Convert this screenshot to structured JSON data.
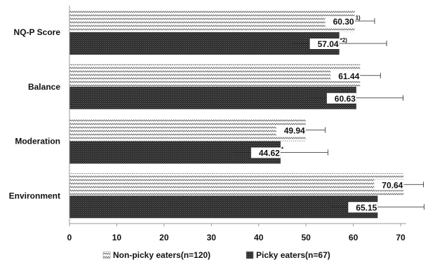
{
  "chart_data": {
    "type": "bar",
    "orientation": "horizontal",
    "categories": [
      "NQ-P Score",
      "Balance",
      "Moderation",
      "Environment"
    ],
    "series": [
      {
        "name": "Non-picky eaters(n=120)",
        "values": [
          60.3,
          61.44,
          49.94,
          70.64
        ],
        "error": [
          4.2,
          4.3,
          4.1,
          4.2
        ],
        "labels": [
          "60.30",
          "61.44",
          "49.94",
          "70.64"
        ],
        "marks": [
          "1)",
          "",
          "",
          ""
        ],
        "pattern": "zigzag",
        "color": "#8c8c8c"
      },
      {
        "name": "Picky eaters(n=67)",
        "values": [
          57.04,
          60.63,
          44.62,
          65.15
        ],
        "error": [
          10.0,
          9.9,
          10.0,
          9.8
        ],
        "labels": [
          "57.04",
          "60.63",
          "44.62",
          "65.15"
        ],
        "marks": [
          "*2)",
          "",
          "*",
          ""
        ],
        "pattern": "dots",
        "color": "#3a3a3a"
      }
    ],
    "xlim": [
      0,
      70
    ],
    "xticks": [
      0,
      10,
      20,
      30,
      40,
      50,
      60,
      70
    ],
    "grid": false,
    "legend_position": "bottom"
  }
}
